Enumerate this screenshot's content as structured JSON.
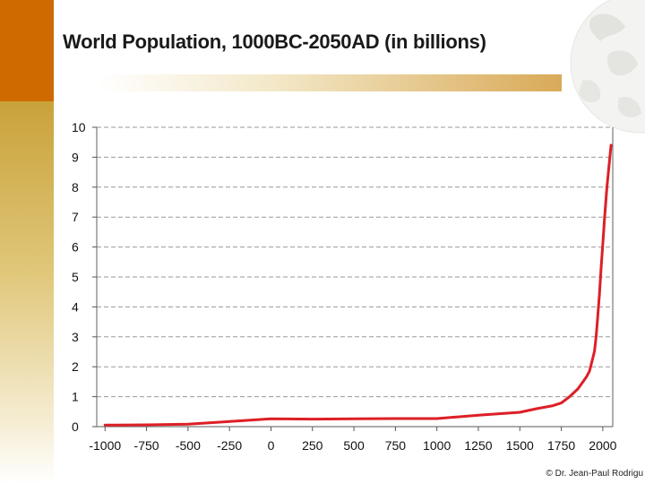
{
  "slide": {
    "title": "World Population, 1000BC-2050AD (in billions)",
    "credit": "© Dr. Jean-Paul Rodrigu"
  },
  "colors": {
    "accent_orange": "#cf6a00",
    "accent_gold": "#c9a23a",
    "line": "#dd1f26",
    "grid": "#9a9a9a",
    "text": "#1a1a1a"
  },
  "chart_data": {
    "type": "line",
    "title": "World Population, 1000BC-2050AD (in billions)",
    "xlabel": "",
    "ylabel": "",
    "xlim": [
      -1050,
      2060
    ],
    "ylim": [
      0,
      10
    ],
    "x_ticks": [
      -1000,
      -750,
      -500,
      -250,
      0,
      250,
      500,
      750,
      1000,
      1250,
      1500,
      1750,
      2000
    ],
    "x_tick_labels": [
      "-1000",
      "-750",
      "-500",
      "-250",
      "0",
      "250",
      "500",
      "750",
      "1000",
      "1250",
      "1500",
      "1750",
      "2000"
    ],
    "y_ticks": [
      0,
      1,
      2,
      3,
      4,
      5,
      6,
      7,
      8,
      9,
      10
    ],
    "y_tick_labels": [
      "0",
      "1",
      "2",
      "3",
      "4",
      "5",
      "6",
      "7",
      "8",
      "9",
      "10"
    ],
    "grid": true,
    "series": [
      {
        "name": "World Population",
        "x": [
          -1000,
          -750,
          -500,
          -250,
          0,
          250,
          500,
          750,
          1000,
          1250,
          1500,
          1600,
          1700,
          1750,
          1800,
          1850,
          1900,
          1920,
          1940,
          1950,
          1960,
          1970,
          1980,
          1990,
          2000,
          2010,
          2025,
          2050
        ],
        "y": [
          0.05,
          0.06,
          0.08,
          0.17,
          0.26,
          0.25,
          0.26,
          0.27,
          0.27,
          0.38,
          0.48,
          0.6,
          0.7,
          0.79,
          1.0,
          1.26,
          1.65,
          1.86,
          2.3,
          2.52,
          3.02,
          3.7,
          4.44,
          5.3,
          6.1,
          6.9,
          8.0,
          9.4
        ]
      }
    ]
  }
}
